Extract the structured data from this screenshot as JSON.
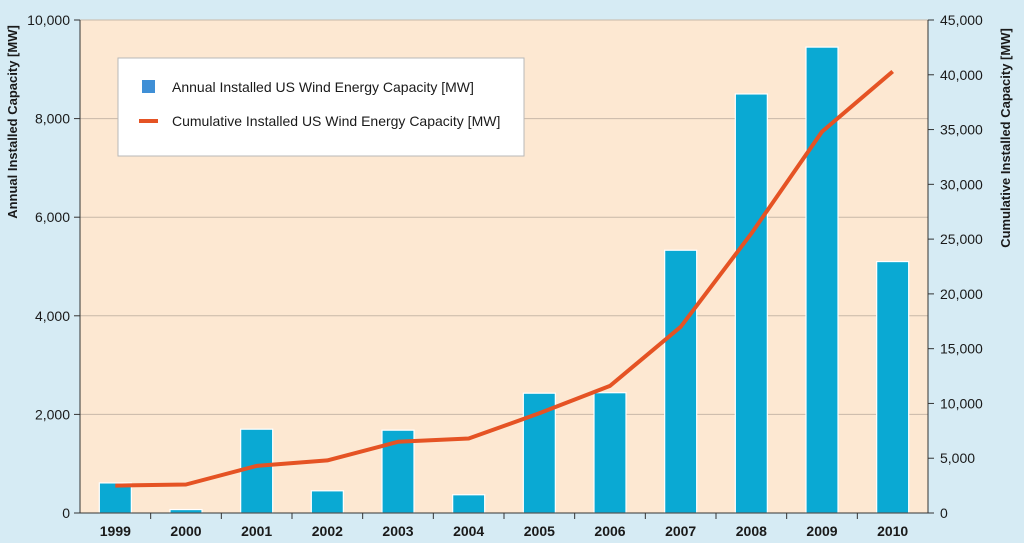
{
  "colors": {
    "background": "#d6ebf4",
    "plot_background": "#fde8d2",
    "bar": "#0aa9d3",
    "bar_legend_marker": "#3f8fd6",
    "line": "#e55324",
    "gridline": "#c8b8a8"
  },
  "chart_data": {
    "type": "bar",
    "categories": [
      "1999",
      "2000",
      "2001",
      "2002",
      "2003",
      "2004",
      "2005",
      "2006",
      "2007",
      "2008",
      "2009",
      "2010"
    ],
    "series": [
      {
        "name": "Annual Installed US Wind Energy Capacity [MW]",
        "type": "bar",
        "axis": "left",
        "values": [
          610,
          70,
          1700,
          450,
          1680,
          370,
          2430,
          2440,
          5330,
          8500,
          9450,
          5100
        ]
      },
      {
        "name": "Cumulative Installed US Wind Energy Capacity [MW]",
        "type": "line",
        "axis": "right",
        "values": [
          2500,
          2600,
          4300,
          4800,
          6500,
          6800,
          9100,
          11600,
          17000,
          25500,
          34800,
          40300
        ]
      }
    ],
    "ylabel": "Annual Installed Capacity [MW]",
    "y2label": "Cumulative Installed Capacity [MW]",
    "ylim": [
      0,
      10000
    ],
    "y2lim": [
      0,
      45000
    ],
    "yticks": [
      "0",
      "2,000",
      "4,000",
      "6,000",
      "8,000",
      "10,000"
    ],
    "y2ticks": [
      "0",
      "5,000",
      "10,000",
      "15,000",
      "20,000",
      "25,000",
      "30,000",
      "35,000",
      "40,000",
      "45,000"
    ],
    "grid": true,
    "legend_position": "top-left"
  }
}
